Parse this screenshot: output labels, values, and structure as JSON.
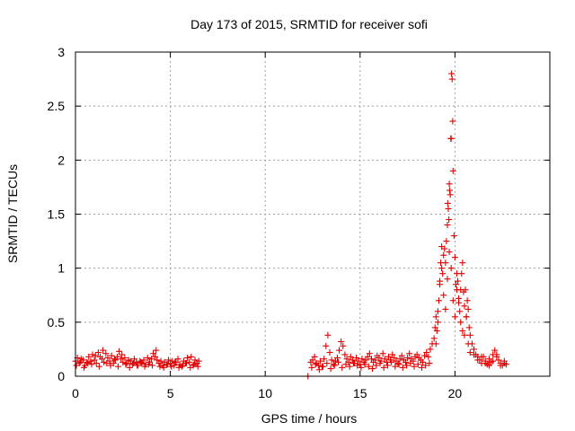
{
  "chart_data": {
    "type": "scatter",
    "title": "Day 173 of 2015, SRMTID for receiver sofi",
    "xlabel": "GPS time / hours",
    "ylabel": "SRMTID / TECUs",
    "xlim": [
      0,
      25
    ],
    "ylim": [
      0,
      3
    ],
    "xticks": [
      0,
      5,
      10,
      15,
      20
    ],
    "xtick_labels": [
      "0",
      "5",
      "10",
      "15",
      "20"
    ],
    "yticks": [
      0,
      0.5,
      1,
      1.5,
      2,
      2.5,
      3
    ],
    "ytick_labels": [
      "0",
      "0.5",
      "1",
      "1.5",
      "2",
      "2.5",
      "3"
    ],
    "grid": true,
    "marker": "+",
    "marker_color": "#e00000",
    "series": [
      {
        "name": "SRMTID",
        "x": [
          0.0,
          0.1,
          0.2,
          0.3,
          0.4,
          0.5,
          0.6,
          0.7,
          0.8,
          0.9,
          1.0,
          1.1,
          1.2,
          1.3,
          1.4,
          1.5,
          1.6,
          1.7,
          1.8,
          1.9,
          2.0,
          2.1,
          2.2,
          2.3,
          2.4,
          2.5,
          2.6,
          2.7,
          2.8,
          2.9,
          3.0,
          3.1,
          3.2,
          3.3,
          3.4,
          3.5,
          3.6,
          3.7,
          3.8,
          3.9,
          4.0,
          4.1,
          4.2,
          4.3,
          4.4,
          4.5,
          4.6,
          4.7,
          4.8,
          4.9,
          5.0,
          5.1,
          5.2,
          5.3,
          5.4,
          5.5,
          5.6,
          5.7,
          5.8,
          5.9,
          6.0,
          6.1,
          6.2,
          6.3,
          6.4,
          6.5,
          0.05,
          0.25,
          0.45,
          0.65,
          0.85,
          1.05,
          1.25,
          1.45,
          1.65,
          1.85,
          2.05,
          2.25,
          2.45,
          2.65,
          2.85,
          3.05,
          3.25,
          3.45,
          3.65,
          3.85,
          4.05,
          4.25,
          4.45,
          4.65,
          4.85,
          5.05,
          5.25,
          5.45,
          5.65,
          5.85,
          6.05,
          6.25,
          6.45,
          12.25,
          12.4,
          12.5,
          12.6,
          12.7,
          12.8,
          12.9,
          13.0,
          13.1,
          13.2,
          13.3,
          13.4,
          13.5,
          13.6,
          13.7,
          13.8,
          13.9,
          14.0,
          14.1,
          14.2,
          14.3,
          14.4,
          14.5,
          14.6,
          14.7,
          14.8,
          14.9,
          15.0,
          15.1,
          15.2,
          15.3,
          15.4,
          15.5,
          15.6,
          15.7,
          15.8,
          15.9,
          16.0,
          16.1,
          16.2,
          16.3,
          16.4,
          16.5,
          16.6,
          16.7,
          16.8,
          16.9,
          17.0,
          17.1,
          17.2,
          17.3,
          17.4,
          17.5,
          17.6,
          17.7,
          17.8,
          17.9,
          18.0,
          18.1,
          18.2,
          18.3,
          18.4,
          18.5,
          18.6,
          18.7,
          18.8,
          12.45,
          12.65,
          12.85,
          13.05,
          13.25,
          13.45,
          13.65,
          13.85,
          14.05,
          14.25,
          14.45,
          14.65,
          14.85,
          15.05,
          15.25,
          15.45,
          15.65,
          15.85,
          16.05,
          16.25,
          16.45,
          16.65,
          16.85,
          17.05,
          17.25,
          17.45,
          17.65,
          17.85,
          18.05,
          18.25,
          18.45,
          18.65,
          18.9,
          18.95,
          19.0,
          19.05,
          19.1,
          19.15,
          19.2,
          19.25,
          19.3,
          19.35,
          19.4,
          19.45,
          19.5,
          19.55,
          19.6,
          19.62,
          19.65,
          19.68,
          19.7,
          19.72,
          19.75,
          19.78,
          19.8,
          19.82,
          19.85,
          19.88,
          19.9,
          19.95,
          20.0,
          20.05,
          20.1,
          20.15,
          20.2,
          20.25,
          20.3,
          20.35,
          20.4,
          20.45,
          20.5,
          20.55,
          20.6,
          20.65,
          20.7,
          20.75,
          20.8,
          20.9,
          21.0,
          21.1,
          21.2,
          21.3,
          21.4,
          21.5,
          21.6,
          21.7,
          21.8,
          21.9,
          22.0,
          22.1,
          22.2,
          22.3,
          22.4,
          22.5,
          22.6,
          22.7,
          19.0,
          19.1,
          19.2,
          19.3,
          19.4,
          19.5,
          19.6,
          19.7,
          19.8,
          19.9,
          20.0,
          20.1,
          20.2,
          20.3,
          20.4,
          20.5,
          20.6,
          20.7,
          20.8,
          21.0,
          21.2,
          21.4,
          21.6,
          21.8,
          22.0,
          22.2,
          22.4,
          22.6
        ],
        "y": [
          0.14,
          0.17,
          0.12,
          0.16,
          0.15,
          0.1,
          0.13,
          0.18,
          0.14,
          0.2,
          0.15,
          0.12,
          0.22,
          0.18,
          0.16,
          0.13,
          0.21,
          0.17,
          0.14,
          0.19,
          0.12,
          0.15,
          0.18,
          0.23,
          0.16,
          0.13,
          0.17,
          0.12,
          0.15,
          0.14,
          0.11,
          0.16,
          0.13,
          0.1,
          0.14,
          0.12,
          0.15,
          0.11,
          0.17,
          0.13,
          0.16,
          0.21,
          0.18,
          0.15,
          0.12,
          0.14,
          0.1,
          0.13,
          0.11,
          0.15,
          0.12,
          0.14,
          0.1,
          0.13,
          0.16,
          0.11,
          0.09,
          0.14,
          0.12,
          0.17,
          0.13,
          0.18,
          0.1,
          0.15,
          0.12,
          0.14,
          0.1,
          0.13,
          0.08,
          0.12,
          0.11,
          0.19,
          0.09,
          0.24,
          0.12,
          0.1,
          0.16,
          0.09,
          0.2,
          0.11,
          0.08,
          0.12,
          0.1,
          0.13,
          0.09,
          0.11,
          0.1,
          0.24,
          0.09,
          0.08,
          0.11,
          0.09,
          0.13,
          0.08,
          0.1,
          0.12,
          0.08,
          0.11,
          0.09,
          0.0,
          0.13,
          0.15,
          0.18,
          0.12,
          0.1,
          0.14,
          0.09,
          0.16,
          0.28,
          0.38,
          0.22,
          0.15,
          0.11,
          0.14,
          0.17,
          0.24,
          0.32,
          0.28,
          0.2,
          0.16,
          0.13,
          0.18,
          0.15,
          0.12,
          0.17,
          0.14,
          0.11,
          0.16,
          0.13,
          0.15,
          0.18,
          0.21,
          0.16,
          0.13,
          0.15,
          0.19,
          0.17,
          0.14,
          0.21,
          0.16,
          0.13,
          0.18,
          0.15,
          0.2,
          0.17,
          0.14,
          0.12,
          0.16,
          0.19,
          0.15,
          0.13,
          0.17,
          0.21,
          0.16,
          0.14,
          0.18,
          0.2,
          0.17,
          0.15,
          0.13,
          0.19,
          0.22,
          0.18,
          0.25,
          0.3,
          0.08,
          0.11,
          0.06,
          0.09,
          0.12,
          0.07,
          0.1,
          0.13,
          0.08,
          0.11,
          0.09,
          0.12,
          0.1,
          0.08,
          0.11,
          0.09,
          0.07,
          0.1,
          0.12,
          0.08,
          0.1,
          0.13,
          0.09,
          0.11,
          0.08,
          0.1,
          0.12,
          0.09,
          0.11,
          0.08,
          0.1,
          0.12,
          0.35,
          0.45,
          0.55,
          0.42,
          0.6,
          0.7,
          0.88,
          1.05,
          1.2,
          0.95,
          1.12,
          1.18,
          1.05,
          1.25,
          1.4,
          1.6,
          1.55,
          1.45,
          1.78,
          1.72,
          1.68,
          2.2,
          2.2,
          2.8,
          2.75,
          2.36,
          1.9,
          1.3,
          1.1,
          0.85,
          0.95,
          0.88,
          0.72,
          0.6,
          0.8,
          0.95,
          1.05,
          0.78,
          0.65,
          0.8,
          0.55,
          0.7,
          0.62,
          0.45,
          0.38,
          0.3,
          0.25,
          0.2,
          0.18,
          0.15,
          0.12,
          0.18,
          0.14,
          0.11,
          0.16,
          0.13,
          0.2,
          0.24,
          0.18,
          0.15,
          0.12,
          0.1,
          0.14,
          0.11,
          0.3,
          0.5,
          0.85,
          1.0,
          0.75,
          0.62,
          0.9,
          1.15,
          1.0,
          0.7,
          0.55,
          0.8,
          0.68,
          0.5,
          0.42,
          0.38,
          0.55,
          0.3,
          0.22,
          0.2,
          0.15,
          0.18,
          0.12,
          0.1,
          0.14,
          0.2,
          0.1,
          0.12
        ]
      }
    ]
  }
}
